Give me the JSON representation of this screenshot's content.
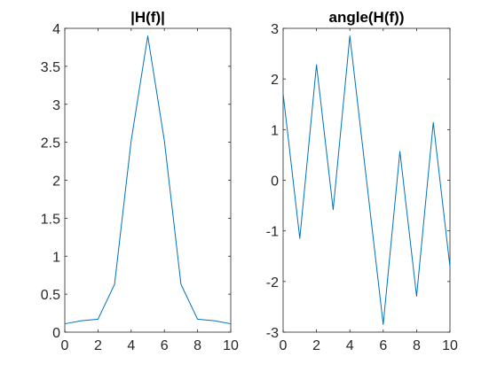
{
  "chart_data": [
    {
      "type": "line",
      "title": "|H(f)|",
      "xlabel": "",
      "ylabel": "",
      "xlim": [
        0,
        10
      ],
      "ylim": [
        0,
        4
      ],
      "xticks": [
        0,
        2,
        4,
        6,
        8,
        10
      ],
      "yticks": [
        0,
        0.5,
        1,
        1.5,
        2,
        2.5,
        3,
        3.5,
        4
      ],
      "grid": false,
      "x": [
        0,
        1,
        2,
        3,
        4,
        5,
        6,
        7,
        8,
        9,
        10
      ],
      "series": [
        {
          "values": [
            0.11,
            0.15,
            0.17,
            0.63,
            2.52,
            3.9,
            2.52,
            0.63,
            0.17,
            0.15,
            0.11
          ]
        }
      ]
    },
    {
      "type": "line",
      "title": "angle(H(f))",
      "xlabel": "",
      "ylabel": "",
      "xlim": [
        0,
        10
      ],
      "ylim": [
        -3,
        3
      ],
      "xticks": [
        0,
        2,
        4,
        6,
        8,
        10
      ],
      "yticks": [
        -3,
        -2,
        -1,
        0,
        1,
        2,
        3
      ],
      "grid": false,
      "x": [
        0,
        1,
        2,
        3,
        4,
        5,
        6,
        7,
        8,
        9,
        10
      ],
      "series": [
        {
          "values": [
            1.71,
            -1.15,
            2.28,
            -0.58,
            2.85,
            0,
            -2.85,
            0.57,
            -2.29,
            1.14,
            -1.71
          ]
        }
      ]
    }
  ],
  "style": {
    "line_color": "#0072BD",
    "axis_color": "#262626",
    "background": "#ffffff"
  }
}
